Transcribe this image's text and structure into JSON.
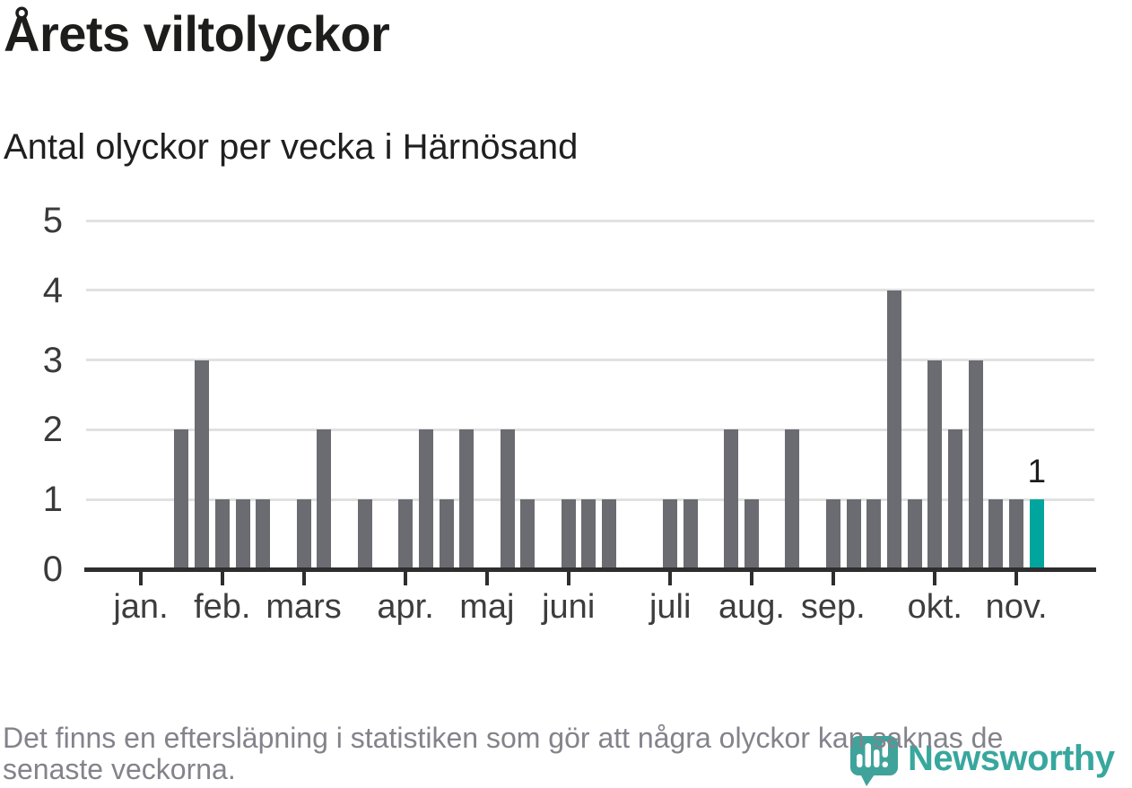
{
  "header": {
    "title": "Årets viltolyckor",
    "subtitle": "Antal olyckor per vecka i Härnösand"
  },
  "footer": {
    "note_line1": "Det finns en eftersläpning i statistiken som gör att några olyckor kan saknas de",
    "note_line2": "senaste veckorna."
  },
  "branding": {
    "name": "Newsworthy",
    "logo_icon": "speech-bubble-bar-chart-icon",
    "color": "#38a79e"
  },
  "chart_data": {
    "type": "bar",
    "title": "Årets viltolyckor",
    "subtitle": "Antal olyckor per vecka i Härnösand",
    "x_unit": "vecka",
    "y_axis": {
      "ticks": [
        0,
        1,
        2,
        3,
        4,
        5
      ],
      "max": 5,
      "grid": true
    },
    "weeks": [
      0,
      0,
      0,
      0,
      2,
      3,
      1,
      1,
      1,
      0,
      1,
      2,
      0,
      1,
      0,
      1,
      2,
      1,
      2,
      0,
      2,
      1,
      0,
      1,
      1,
      1,
      0,
      0,
      1,
      1,
      0,
      2,
      1,
      0,
      2,
      0,
      1,
      1,
      1,
      4,
      1,
      3,
      2,
      3,
      1,
      1,
      1,
      0,
      0,
      0
    ],
    "month_ticks": [
      {
        "label": "jan.",
        "slot": 2
      },
      {
        "label": "feb.",
        "slot": 6
      },
      {
        "label": "mars",
        "slot": 10
      },
      {
        "label": "apr.",
        "slot": 15
      },
      {
        "label": "maj",
        "slot": 19
      },
      {
        "label": "juni",
        "slot": 23
      },
      {
        "label": "juli",
        "slot": 28
      },
      {
        "label": "aug.",
        "slot": 32
      },
      {
        "label": "sep.",
        "slot": 36
      },
      {
        "label": "okt.",
        "slot": 41
      },
      {
        "label": "nov.",
        "slot": 45
      }
    ],
    "highlight": {
      "index": 46,
      "value": 1,
      "label": "1"
    },
    "colors": {
      "bar": "#6b6b72",
      "highlight": "#00a69d",
      "grid": "#e1e1e1",
      "axis": "#2e2e2e"
    }
  }
}
